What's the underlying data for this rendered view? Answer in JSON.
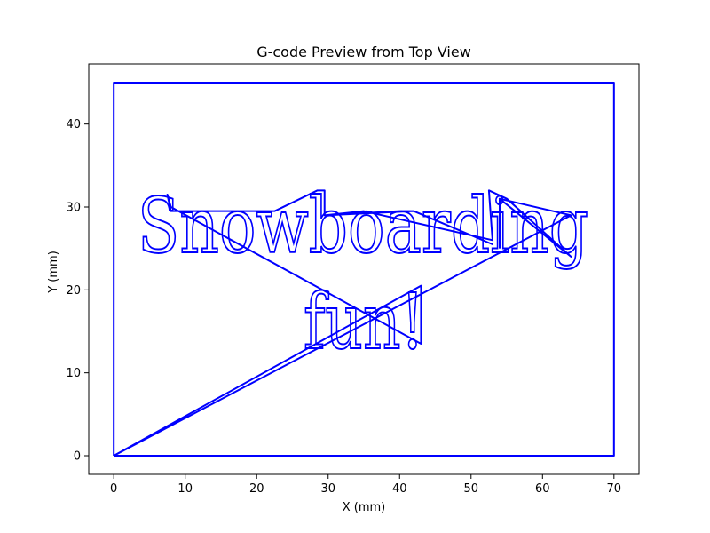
{
  "chart_data": {
    "type": "line",
    "title": "G-code Preview from Top View",
    "xlabel": "X (mm)",
    "ylabel": "Y (mm)",
    "xlim": [
      -3.5,
      73.5
    ],
    "ylim": [
      -2.25,
      47.25
    ],
    "xticks": [
      0,
      10,
      20,
      30,
      40,
      50,
      60,
      70
    ],
    "yticks": [
      0,
      10,
      20,
      30,
      40
    ],
    "grid": false,
    "line_color": "#0000ff",
    "series": [
      {
        "values": [
          {
            "x": 0,
            "y": 0
          },
          {
            "x": 70,
            "y": 0
          },
          {
            "x": 70,
            "y": 45
          },
          {
            "x": 0,
            "y": 45
          },
          {
            "x": 0,
            "y": 0
          }
        ]
      },
      {
        "values": [
          {
            "x": 0,
            "y": 0
          },
          {
            "x": 43,
            "y": 20.5
          },
          {
            "x": 43,
            "y": 13.5
          },
          {
            "x": 8,
            "y": 30
          },
          {
            "x": 7.5,
            "y": 31.5
          },
          {
            "x": 8,
            "y": 29.5
          },
          {
            "x": 22.5,
            "y": 29.5
          },
          {
            "x": 28.5,
            "y": 32
          },
          {
            "x": 29.5,
            "y": 32
          },
          {
            "x": 29.5,
            "y": 29
          },
          {
            "x": 42,
            "y": 29.5
          },
          {
            "x": 53,
            "y": 25.5
          },
          {
            "x": 42,
            "y": 29.5
          },
          {
            "x": 40,
            "y": 29.5
          },
          {
            "x": 29.5,
            "y": 29
          },
          {
            "x": 35,
            "y": 29.5
          },
          {
            "x": 53,
            "y": 26
          },
          {
            "x": 52.5,
            "y": 32
          },
          {
            "x": 55,
            "y": 31
          },
          {
            "x": 64,
            "y": 24
          },
          {
            "x": 54,
            "y": 31
          },
          {
            "x": 64,
            "y": 29
          },
          {
            "x": 0,
            "y": 0
          }
        ]
      },
      {
        "values": [
          {
            "x": 54,
            "y": 31
          },
          {
            "x": 54,
            "y": 25
          }
        ]
      }
    ],
    "text_drawn_as_path": [
      "Snowboarding",
      "fun!"
    ]
  }
}
